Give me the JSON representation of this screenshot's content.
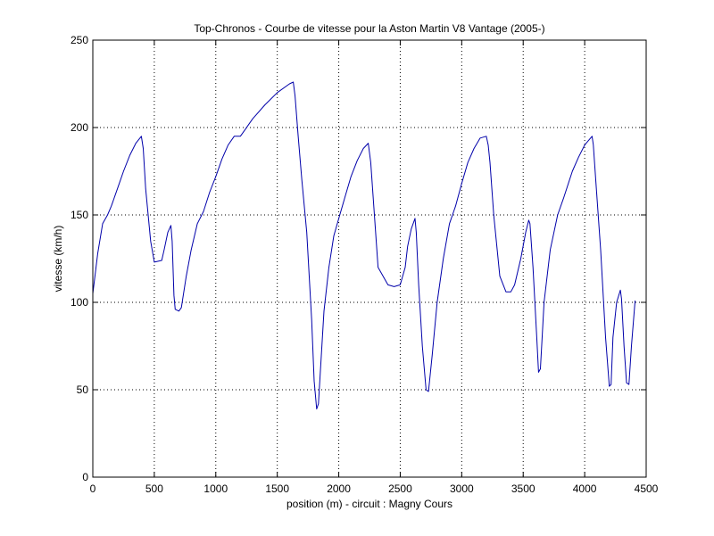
{
  "chart_data": {
    "type": "line",
    "title": "Top-Chronos - Courbe de vitesse pour la Aston Martin V8 Vantage (2005-)",
    "xlabel": "position (m) - circuit : Magny Cours",
    "ylabel": "vitesse (km/h)",
    "xlim": [
      0,
      4500
    ],
    "ylim": [
      0,
      250
    ],
    "xticks": [
      0,
      500,
      1000,
      1500,
      2000,
      2500,
      3000,
      3500,
      4000,
      4500
    ],
    "yticks": [
      0,
      50,
      100,
      150,
      200,
      250
    ],
    "grid": true,
    "line_color": "#0000aa",
    "series": [
      {
        "x": [
          0,
          40,
          80,
          120,
          150,
          200,
          250,
          300,
          350,
          395,
          410,
          430,
          470,
          500,
          560,
          580,
          610,
          635,
          645,
          660,
          670,
          700,
          720,
          760,
          800,
          850,
          900,
          950,
          1000,
          1050,
          1100,
          1150,
          1200,
          1230,
          1300,
          1400,
          1500,
          1600,
          1630,
          1645,
          1670,
          1700,
          1740,
          1780,
          1800,
          1820,
          1835,
          1850,
          1880,
          1920,
          1960,
          2000,
          2050,
          2100,
          2150,
          2200,
          2240,
          2260,
          2290,
          2320,
          2400,
          2450,
          2500,
          2540,
          2560,
          2590,
          2620,
          2630,
          2650,
          2680,
          2710,
          2730,
          2760,
          2800,
          2850,
          2900,
          2950,
          3000,
          3050,
          3100,
          3150,
          3200,
          3215,
          3230,
          3260,
          3310,
          3360,
          3400,
          3430,
          3480,
          3520,
          3545,
          3555,
          3580,
          3610,
          3625,
          3640,
          3670,
          3720,
          3780,
          3830,
          3900,
          3950,
          4000,
          4060,
          4070,
          4090,
          4130,
          4170,
          4200,
          4215,
          4230,
          4260,
          4290,
          4300,
          4320,
          4340,
          4360,
          4380,
          4410
        ],
        "y": [
          105,
          128,
          145,
          150,
          155,
          165,
          175,
          184,
          191,
          195,
          188,
          165,
          135,
          123,
          124,
          130,
          140,
          144,
          135,
          104,
          96,
          95,
          97,
          115,
          130,
          145,
          152,
          163,
          172,
          182,
          190,
          195,
          195,
          198,
          205,
          213,
          220,
          225,
          226,
          218,
          195,
          170,
          140,
          90,
          55,
          39,
          42,
          60,
          95,
          120,
          138,
          148,
          160,
          172,
          181,
          188,
          191,
          180,
          150,
          120,
          110,
          109,
          110,
          120,
          132,
          142,
          148,
          140,
          110,
          75,
          50,
          49,
          70,
          100,
          125,
          145,
          155,
          168,
          180,
          188,
          194,
          195,
          190,
          180,
          150,
          115,
          106,
          106,
          110,
          125,
          140,
          147,
          145,
          120,
          80,
          60,
          62,
          100,
          130,
          150,
          160,
          175,
          183,
          190,
          195,
          190,
          170,
          130,
          80,
          52,
          53,
          80,
          100,
          107,
          102,
          75,
          54,
          53,
          75,
          101
        ]
      }
    ]
  }
}
